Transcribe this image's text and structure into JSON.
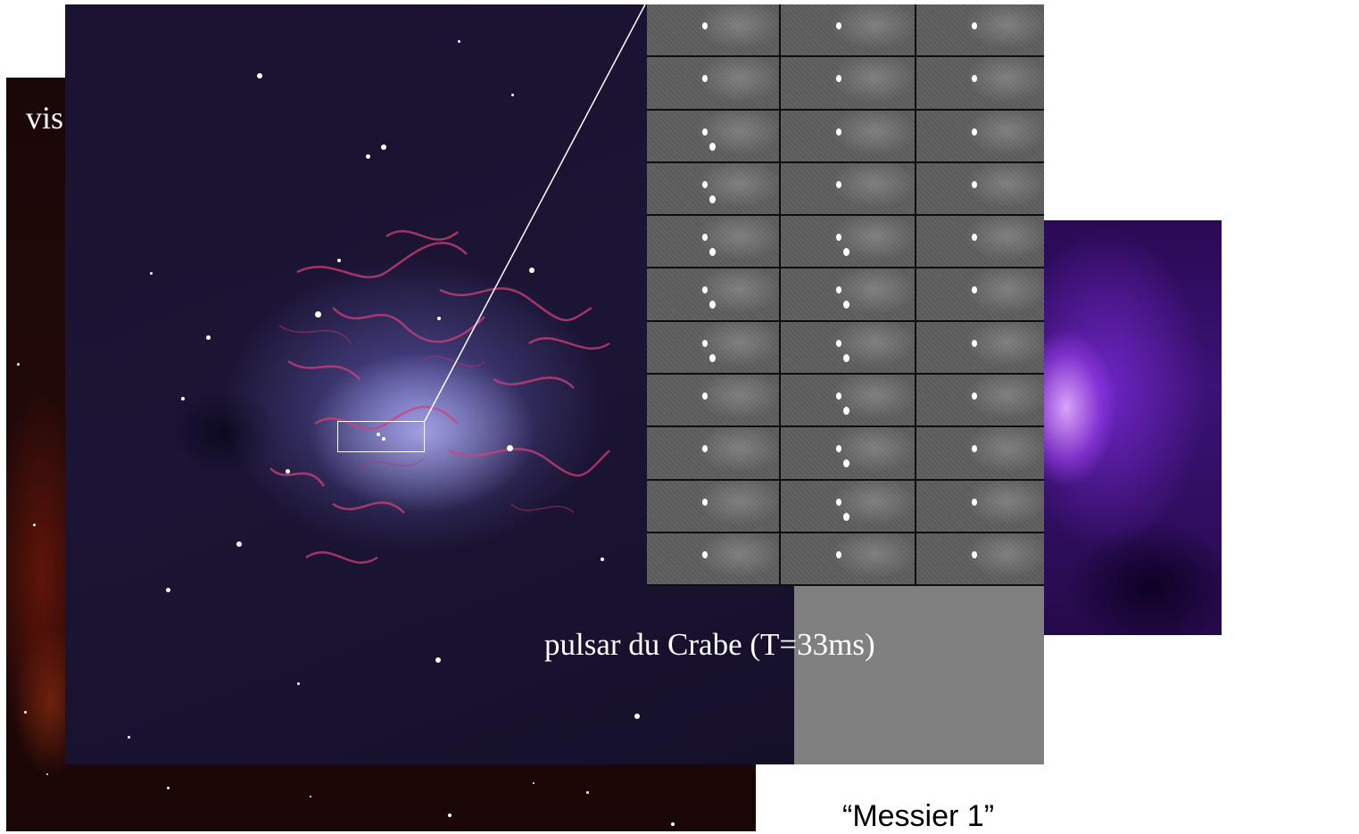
{
  "labels": {
    "visible": "vis",
    "caption": "pulsar du Crabe (T=33ms)",
    "bottom_caption": "“Messier 1”"
  },
  "colors": {
    "caption_panel": "#808080",
    "page_background": "#ffffff"
  }
}
